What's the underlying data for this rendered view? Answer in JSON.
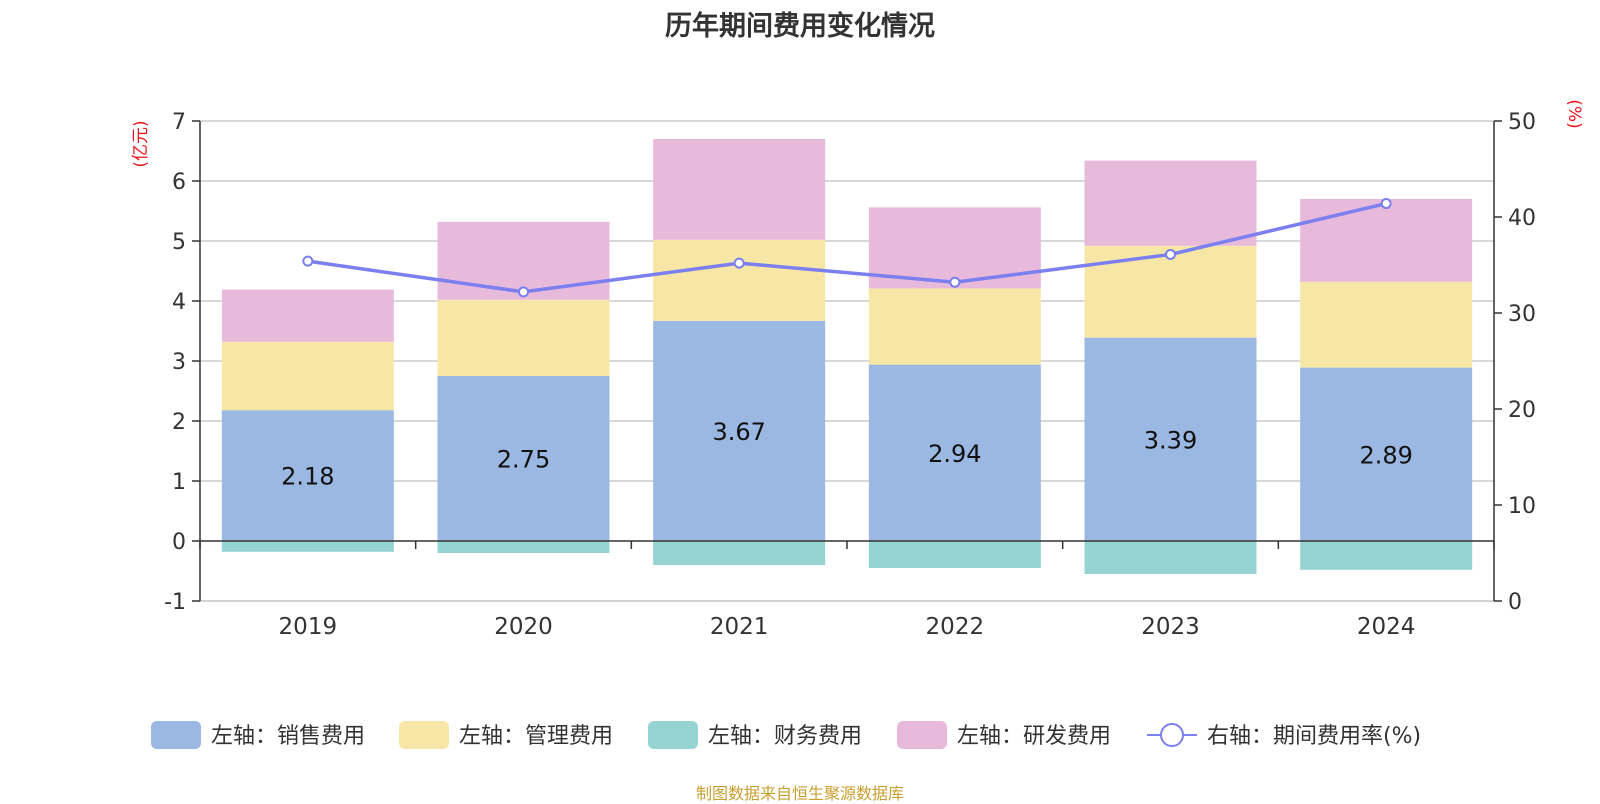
{
  "title": "历年期间费用变化情况",
  "source": "制图数据来自恒生聚源数据库",
  "colors": {
    "sales": "#9bb8e2",
    "admin": "#f7e7a6",
    "finance": "#96d4d4",
    "rd": "#e7b9da",
    "rate_line": "#7b7ff0",
    "axis_unit": "#e8141c"
  },
  "chart_data": {
    "type": "bar",
    "stacked": true,
    "categories": [
      "2019",
      "2020",
      "2021",
      "2022",
      "2023",
      "2024"
    ],
    "left_axis": {
      "unit": "(亿元)",
      "ylim": [
        -1,
        7
      ],
      "ticks": [
        "-1",
        "0",
        "1",
        "2",
        "3",
        "4",
        "5",
        "6",
        "7"
      ]
    },
    "right_axis": {
      "unit": "(%)",
      "ylim": [
        0,
        50
      ],
      "ticks": [
        "0",
        "10",
        "20",
        "30",
        "40",
        "50"
      ]
    },
    "series": [
      {
        "name": "左轴：销售费用",
        "key": "sales",
        "type": "bar",
        "axis": "left",
        "values": [
          2.18,
          2.75,
          3.67,
          2.94,
          3.39,
          2.89
        ],
        "labels": [
          "2.18",
          "2.75",
          "3.67",
          "2.94",
          "3.39",
          "2.89"
        ]
      },
      {
        "name": "左轴：管理费用",
        "key": "admin",
        "type": "bar",
        "axis": "left",
        "values": [
          1.14,
          1.27,
          1.35,
          1.27,
          1.53,
          1.43
        ]
      },
      {
        "name": "左轴：财务费用",
        "key": "finance",
        "type": "bar",
        "axis": "left",
        "values": [
          -0.18,
          -0.2,
          -0.4,
          -0.45,
          -0.55,
          -0.48
        ]
      },
      {
        "name": "左轴：研发费用",
        "key": "rd",
        "type": "bar",
        "axis": "left",
        "values": [
          0.87,
          1.3,
          1.68,
          1.35,
          1.42,
          1.38
        ]
      },
      {
        "name": "右轴：期间费用率(%)",
        "key": "rate",
        "type": "line",
        "axis": "right",
        "values": [
          35.4,
          32.2,
          35.2,
          33.2,
          36.1,
          41.4
        ]
      }
    ],
    "grid": true,
    "legend_position": "bottom"
  }
}
